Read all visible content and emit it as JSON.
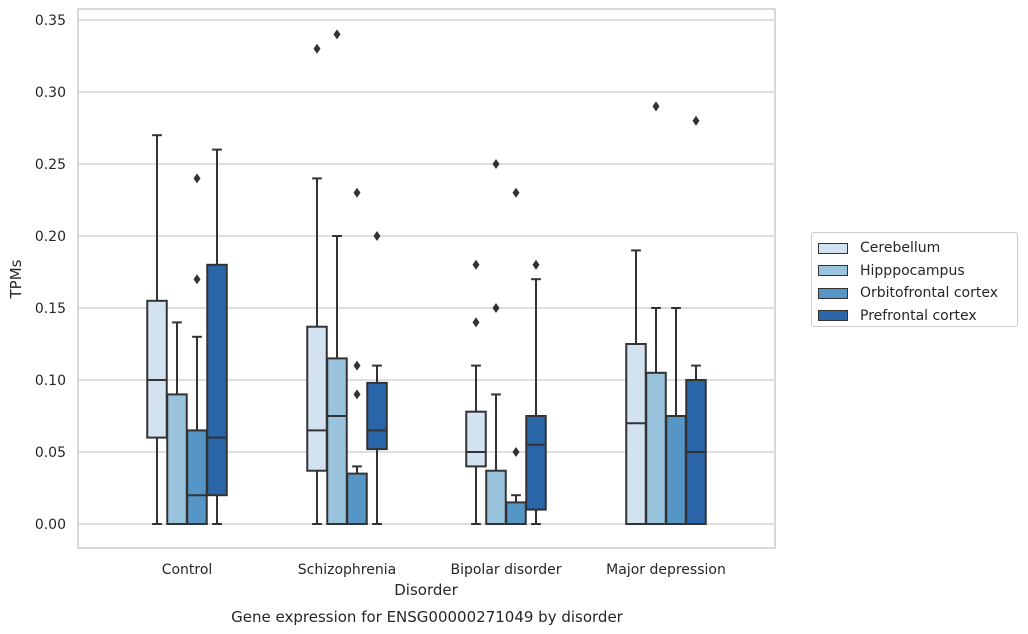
{
  "chart_data": {
    "type": "box",
    "title": "Gene expression for ENSG00000271049 by disorder",
    "xlabel": "Disorder",
    "ylabel": "TPMs",
    "ylim": [
      -0.017,
      0.357
    ],
    "yticks": [
      "0.00",
      "0.05",
      "0.10",
      "0.15",
      "0.20",
      "0.25",
      "0.30",
      "0.35"
    ],
    "categories": [
      "Control",
      "Schizophrenia",
      "Bipolar disorder",
      "Major depression"
    ],
    "grid": "horizontal",
    "legend_position": "right",
    "series": [
      {
        "name": "Cerebellum",
        "color": "#d2e2f1",
        "boxes": [
          {
            "low": 0.0,
            "q1": 0.06,
            "median": 0.1,
            "q3": 0.155,
            "high": 0.27,
            "outliers": []
          },
          {
            "low": 0.0,
            "q1": 0.037,
            "median": 0.065,
            "q3": 0.137,
            "high": 0.24,
            "outliers": [
              0.33
            ]
          },
          {
            "low": 0.0,
            "q1": 0.04,
            "median": 0.05,
            "q3": 0.078,
            "high": 0.11,
            "outliers": [
              0.14,
              0.18
            ]
          },
          {
            "low": 0.0,
            "q1": 0.0,
            "median": 0.07,
            "q3": 0.125,
            "high": 0.19,
            "outliers": []
          }
        ]
      },
      {
        "name": "Hipppocampus",
        "color": "#9ac4de",
        "boxes": [
          {
            "low": 0.0,
            "q1": 0.0,
            "median": 0.0,
            "q3": 0.09,
            "high": 0.14,
            "outliers": []
          },
          {
            "low": 0.0,
            "q1": 0.0,
            "median": 0.075,
            "q3": 0.115,
            "high": 0.2,
            "outliers": [
              0.34
            ]
          },
          {
            "low": 0.0,
            "q1": 0.0,
            "median": 0.0,
            "q3": 0.037,
            "high": 0.09,
            "outliers": [
              0.15,
              0.25
            ]
          },
          {
            "low": 0.0,
            "q1": 0.0,
            "median": 0.0,
            "q3": 0.105,
            "high": 0.15,
            "outliers": [
              0.29
            ]
          }
        ]
      },
      {
        "name": "Orbitofrontal cortex",
        "color": "#5596c6",
        "boxes": [
          {
            "low": 0.0,
            "q1": 0.0,
            "median": 0.02,
            "q3": 0.065,
            "high": 0.13,
            "outliers": [
              0.17,
              0.24
            ]
          },
          {
            "low": 0.0,
            "q1": 0.0,
            "median": 0.0,
            "q3": 0.035,
            "high": 0.04,
            "outliers": [
              0.09,
              0.11,
              0.23
            ]
          },
          {
            "low": 0.0,
            "q1": 0.0,
            "median": 0.0,
            "q3": 0.015,
            "high": 0.02,
            "outliers": [
              0.05,
              0.23
            ]
          },
          {
            "low": 0.0,
            "q1": 0.0,
            "median": 0.0,
            "q3": 0.075,
            "high": 0.15,
            "outliers": []
          }
        ]
      },
      {
        "name": "Prefrontal cortex",
        "color": "#2a66a8",
        "boxes": [
          {
            "low": 0.0,
            "q1": 0.02,
            "median": 0.06,
            "q3": 0.18,
            "high": 0.26,
            "outliers": []
          },
          {
            "low": 0.0,
            "q1": 0.052,
            "median": 0.065,
            "q3": 0.098,
            "high": 0.11,
            "outliers": [
              0.2
            ]
          },
          {
            "low": 0.0,
            "q1": 0.01,
            "median": 0.055,
            "q3": 0.075,
            "high": 0.17,
            "outliers": [
              0.18
            ]
          },
          {
            "low": 0.0,
            "q1": 0.0,
            "median": 0.05,
            "q3": 0.1,
            "high": 0.11,
            "outliers": [
              0.28
            ]
          }
        ]
      }
    ]
  }
}
